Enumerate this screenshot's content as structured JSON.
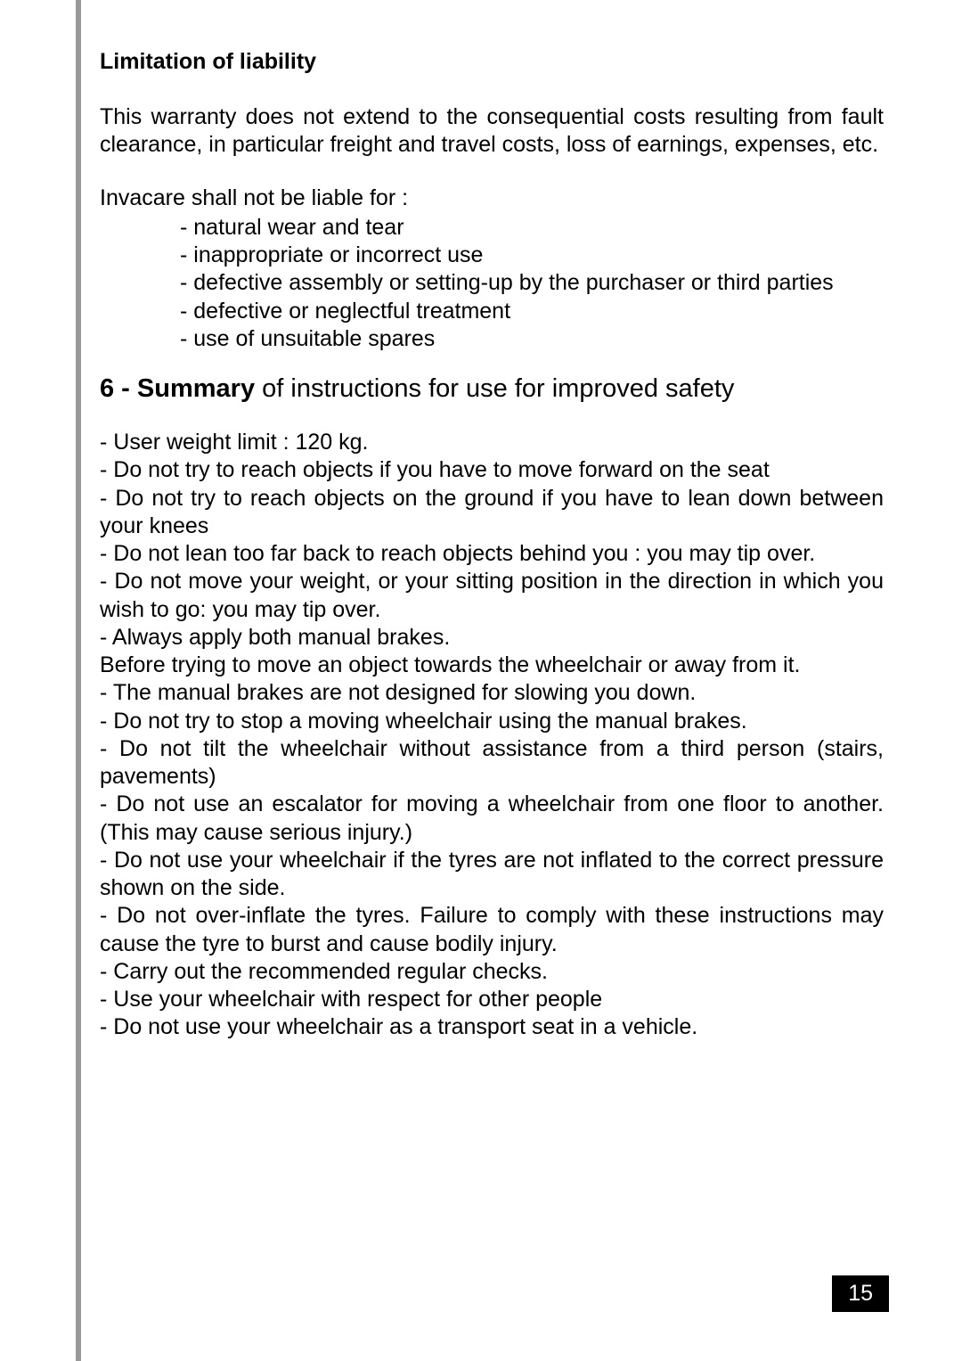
{
  "colors": {
    "left_bar": "#999999",
    "text": "#000000",
    "page_num_bg": "#000000",
    "page_num_fg": "#ffffff",
    "page_bg": "#ffffff"
  },
  "typography": {
    "body_fontsize_pt": 18,
    "heading_fontsize_pt": 22,
    "font_family": "Arial"
  },
  "limitation": {
    "title": "Limitation of liability",
    "para": "This warranty does not extend to the consequential costs resulting from fault clearance, in particular freight and travel costs, loss of earnings, expenses, etc.",
    "intro": "Invacare shall not be liable for :",
    "items": [
      "- natural wear and tear",
      "- inappropriate or incorrect use",
      "- defective assembly or setting-up by the purchaser or third parties",
      "- defective or neglectful treatment",
      "- use of unsuitable spares"
    ]
  },
  "summary": {
    "heading_bold": "6 - Summary",
    "heading_rest": " of instructions for use for improved safety",
    "lines": [
      "- User weight limit : 120 kg.",
      "- Do not try to reach objects if you have to move forward on the seat",
      "- Do not try to reach objects on the ground if you have to lean down between your knees",
      "- Do not lean too far back to reach objects behind you : you may tip over.",
      "- Do not move your weight, or your sitting position in the direction in which you wish to go: you may tip over.",
      "- Always apply both manual brakes.",
      "Before trying to move an object towards the wheelchair or away from it.",
      "- The manual brakes are not designed for slowing you down.",
      "- Do not try to stop a moving wheelchair using the manual brakes.",
      "- Do not tilt the wheelchair without assistance from a third person (stairs, pavements)",
      "- Do not use an escalator for moving a wheelchair from one floor to another. (This may cause serious injury.)",
      "- Do not use your wheelchair if the tyres are not inflated to the correct pressure shown on the side.",
      "- Do not over-inflate the tyres. Failure to comply with these instructions may cause the tyre to burst and cause bodily injury.",
      "- Carry out the recommended regular checks.",
      "- Use your wheelchair with respect for other people",
      "- Do not use your wheelchair as a transport seat in a vehicle."
    ]
  },
  "page_number": "15"
}
